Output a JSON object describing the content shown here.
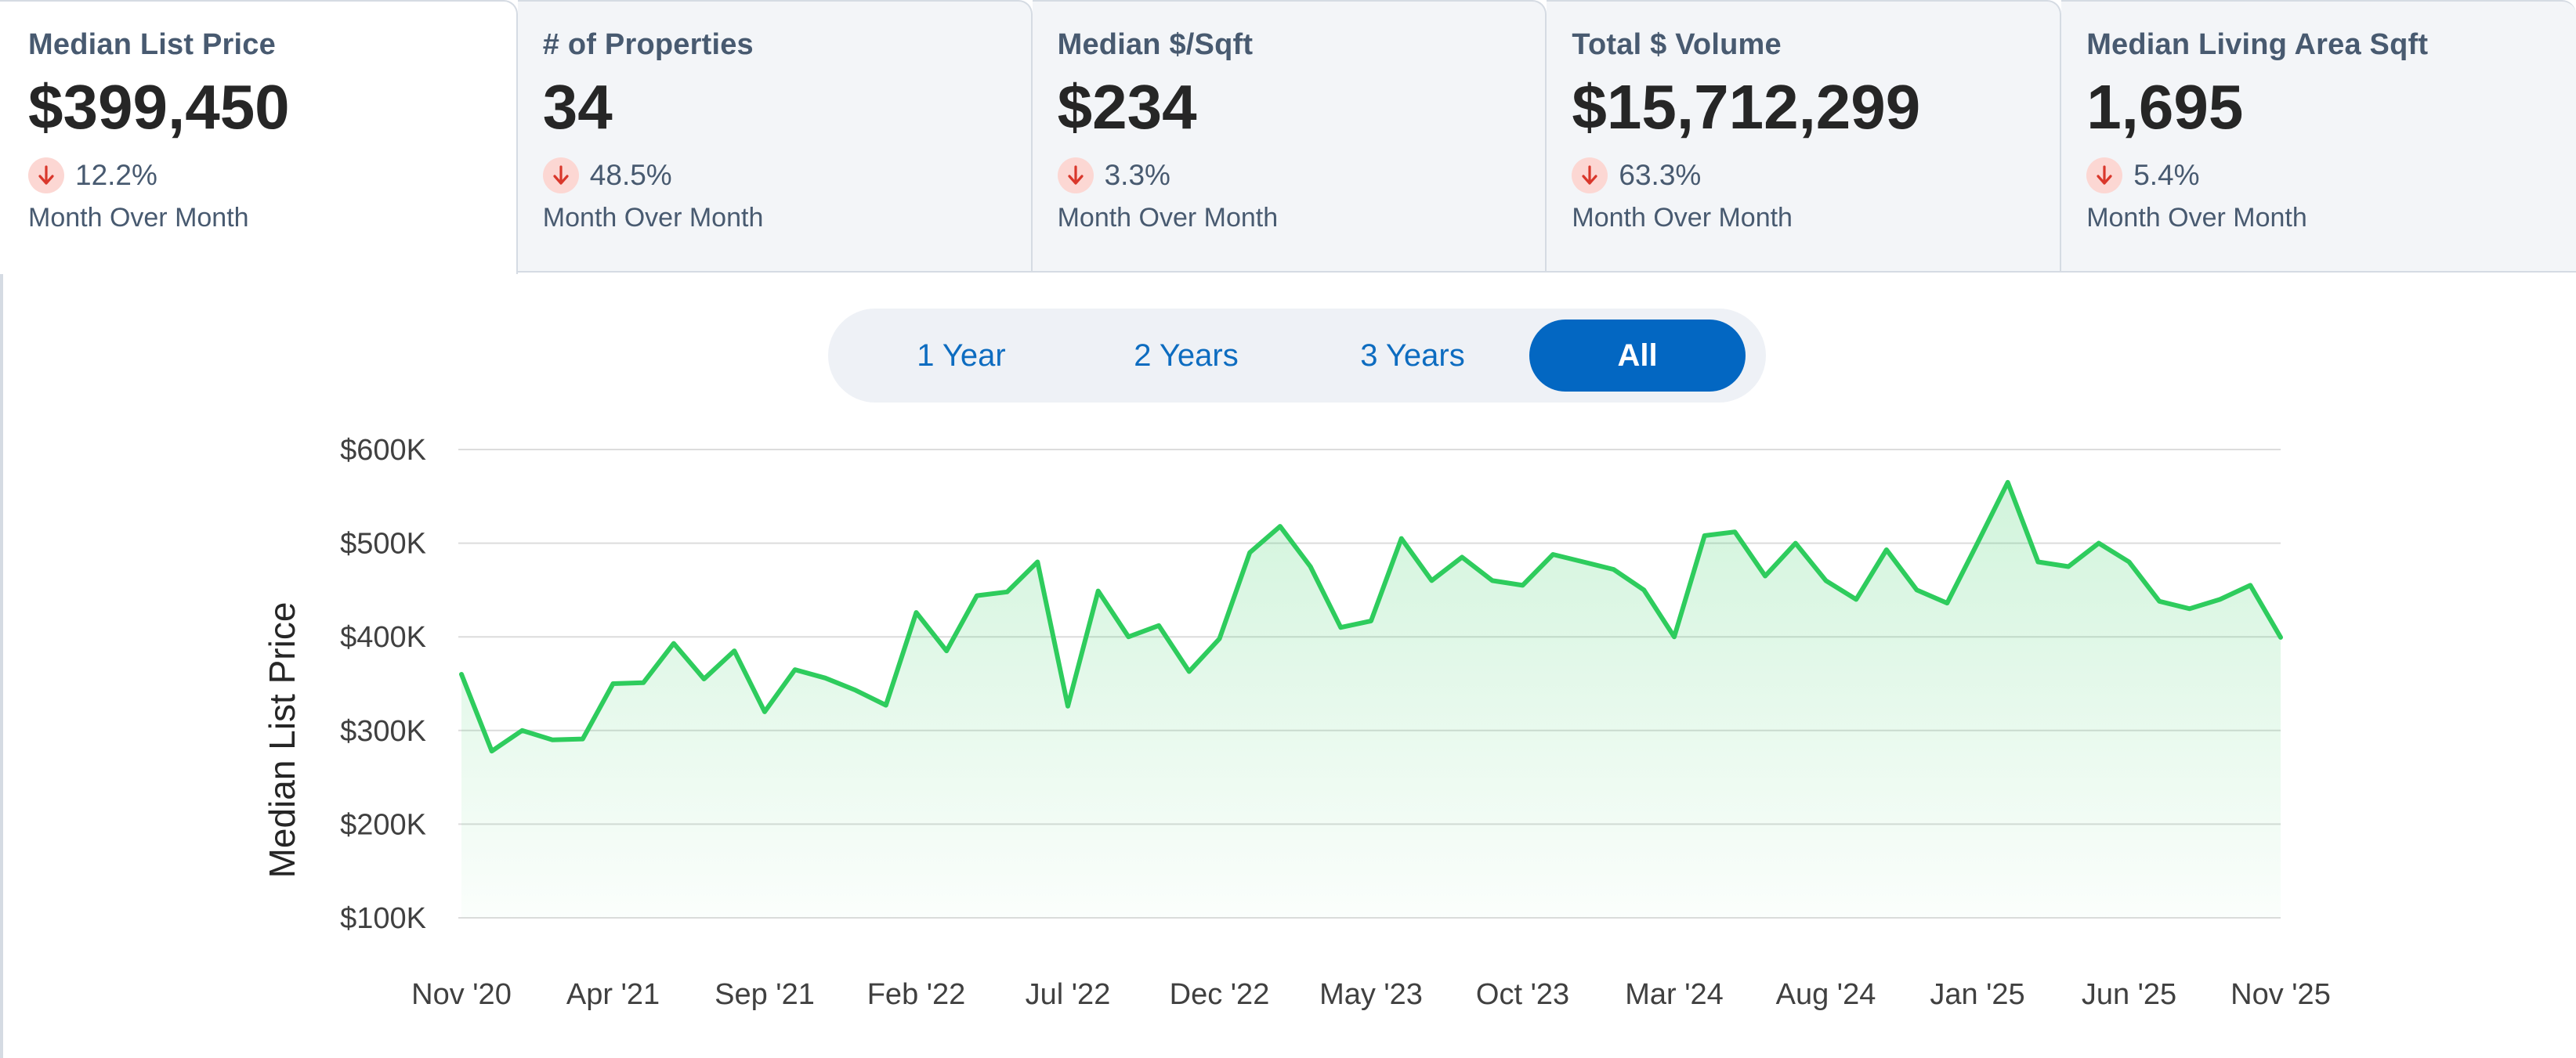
{
  "cards": [
    {
      "title": "Median List Price",
      "value": "$399,450",
      "change": "12.2%",
      "period": "Month Over Month",
      "direction": "down"
    },
    {
      "title": "# of Properties",
      "value": "34",
      "change": "48.5%",
      "period": "Month Over Month",
      "direction": "down"
    },
    {
      "title": "Median $/Sqft",
      "value": "$234",
      "change": "3.3%",
      "period": "Month Over Month",
      "direction": "down"
    },
    {
      "title": "Total $ Volume",
      "value": "$15,712,299",
      "change": "63.3%",
      "period": "Month Over Month",
      "direction": "down"
    },
    {
      "title": "Median Living Area Sqft",
      "value": "1,695",
      "change": "5.4%",
      "period": "Month Over Month",
      "direction": "down"
    }
  ],
  "range_toggle": {
    "options": [
      "1 Year",
      "2 Years",
      "3 Years",
      "All"
    ],
    "selected": "All"
  },
  "colors": {
    "line": "#2ecc5d",
    "accent_blue": "#0367c2",
    "down_arrow": "#d9372b",
    "down_bg": "#fcd7d3"
  },
  "chart_data": {
    "type": "area",
    "title": "",
    "xlabel": "",
    "ylabel": "Median List Price",
    "ylim": [
      100000,
      600000
    ],
    "yticks": [
      100000,
      200000,
      300000,
      400000,
      500000,
      600000
    ],
    "ytick_labels": [
      "$100K",
      "$200K",
      "$300K",
      "$400K",
      "$500K",
      "$600K"
    ],
    "xtick_labels": [
      "Nov '20",
      "Apr '21",
      "Sep '21",
      "Feb '22",
      "Jul '22",
      "Dec '22",
      "May '23",
      "Oct '23",
      "Mar '24",
      "Aug '24",
      "Jan '25",
      "Jun '25",
      "Nov '25"
    ],
    "grid": true,
    "x": [
      "2020-11",
      "2020-12",
      "2021-01",
      "2021-02",
      "2021-03",
      "2021-04",
      "2021-05",
      "2021-06",
      "2021-07",
      "2021-08",
      "2021-09",
      "2021-10",
      "2021-11",
      "2021-12",
      "2022-01",
      "2022-02",
      "2022-03",
      "2022-04",
      "2022-05",
      "2022-06",
      "2022-07",
      "2022-08",
      "2022-09",
      "2022-10",
      "2022-11",
      "2022-12",
      "2023-01",
      "2023-02",
      "2023-03",
      "2023-04",
      "2023-05",
      "2023-06",
      "2023-07",
      "2023-08",
      "2023-09",
      "2023-10",
      "2023-11",
      "2023-12",
      "2024-01",
      "2024-02",
      "2024-03",
      "2024-04",
      "2024-05",
      "2024-06",
      "2024-07",
      "2024-08",
      "2024-09",
      "2024-10",
      "2024-11",
      "2024-12",
      "2025-01",
      "2025-02",
      "2025-03",
      "2025-04",
      "2025-05",
      "2025-06",
      "2025-07",
      "2025-08",
      "2025-09",
      "2025-10",
      "2025-11"
    ],
    "series": [
      {
        "values": [
          360000,
          278000,
          300000,
          290000,
          291000,
          350000,
          351000,
          393000,
          355000,
          385000,
          320000,
          365000,
          356000,
          343000,
          327000,
          426000,
          385000,
          444000,
          448000,
          480000,
          326000,
          449000,
          400000,
          412000,
          363000,
          398000,
          490000,
          518000,
          475000,
          410000,
          417000,
          505000,
          460000,
          485000,
          460000,
          455000,
          488000,
          480000,
          472000,
          450000,
          400000,
          508000,
          512000,
          465000,
          500000,
          460000,
          440000,
          493000,
          450000,
          436000,
          500000,
          565000,
          480000,
          475000,
          500000,
          480000,
          438000,
          430000,
          440000,
          455000,
          399450
        ]
      }
    ]
  }
}
